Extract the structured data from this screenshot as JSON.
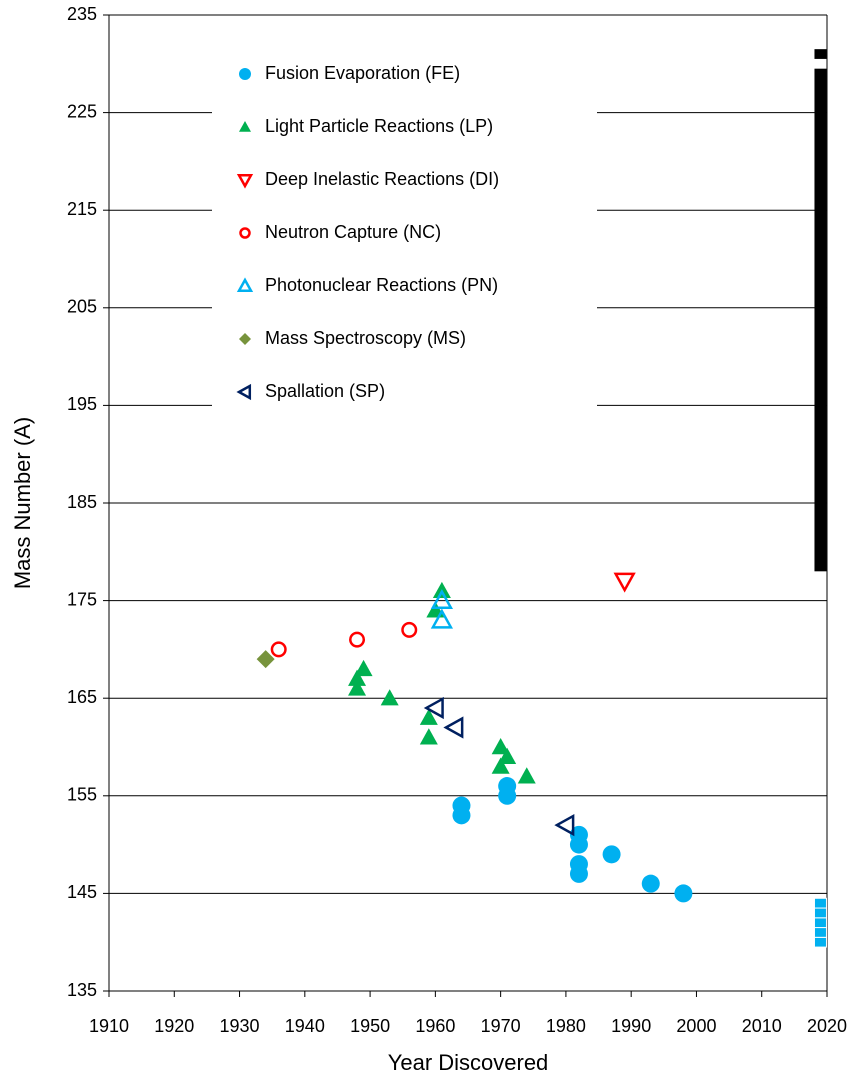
{
  "chart_data": {
    "type": "scatter",
    "xlabel": "Year Discovered",
    "ylabel": "Mass Number (A)",
    "xlim": [
      1910,
      2020
    ],
    "xticks": [
      1910,
      1920,
      1930,
      1940,
      1950,
      1960,
      1970,
      1980,
      1990,
      2000,
      2010,
      2020
    ],
    "ylim": [
      135,
      235
    ],
    "yticks": [
      135,
      145,
      155,
      165,
      175,
      185,
      195,
      205,
      215,
      225,
      235
    ],
    "grid": true,
    "series": [
      {
        "name": "Fusion Evaporation (FE)",
        "color": "#00b0f0",
        "marker": "circle",
        "x": [
          1964,
          1964,
          1971,
          1971,
          1982,
          1982,
          1982,
          1982,
          1987,
          1993,
          1998
        ],
        "values": [
          154,
          153,
          156,
          155,
          151,
          150,
          148,
          147,
          149,
          146,
          145
        ]
      },
      {
        "name": "Light Particle Reactions (LP)",
        "color": "#00b050",
        "marker": "triangle-up",
        "x": [
          1948,
          1948,
          1949,
          1953,
          1959,
          1959,
          1960,
          1961,
          1970,
          1970,
          1971,
          1974
        ],
        "values": [
          167,
          166,
          168,
          165,
          163,
          161,
          174,
          176,
          160,
          158,
          159,
          157
        ]
      },
      {
        "name": "Deep Inelastic Reactions (DI)",
        "color": "#ff0000",
        "marker": "triangle-down-open",
        "x": [
          1989
        ],
        "values": [
          177
        ]
      },
      {
        "name": "Neutron Capture (NC)",
        "color": "#ff0000",
        "marker": "circle-open",
        "x": [
          1936,
          1948,
          1956
        ],
        "values": [
          170,
          171,
          172
        ]
      },
      {
        "name": "Photonuclear Reactions (PN)",
        "color": "#00b0f0",
        "marker": "triangle-up-open",
        "x": [
          1961,
          1961
        ],
        "values": [
          175,
          173
        ]
      },
      {
        "name": "Mass Spectroscopy (MS)",
        "color": "#77933c",
        "marker": "diamond",
        "x": [
          1934
        ],
        "values": [
          169
        ]
      },
      {
        "name": "Spallation (SP)",
        "color": "#002060",
        "marker": "triangle-left-open",
        "x": [
          1960,
          1963,
          1980
        ],
        "values": [
          164,
          162,
          152
        ]
      }
    ],
    "range_bars": [
      {
        "color": "#000000",
        "x": 2019,
        "from": 178,
        "to": 229.5
      },
      {
        "color": "#000000",
        "x": 2019,
        "from": 230.5,
        "to": 231.5
      }
    ],
    "square_marks": {
      "color": "#00b0f0",
      "x": 2019,
      "values": [
        140,
        141,
        142,
        143,
        144
      ]
    }
  }
}
